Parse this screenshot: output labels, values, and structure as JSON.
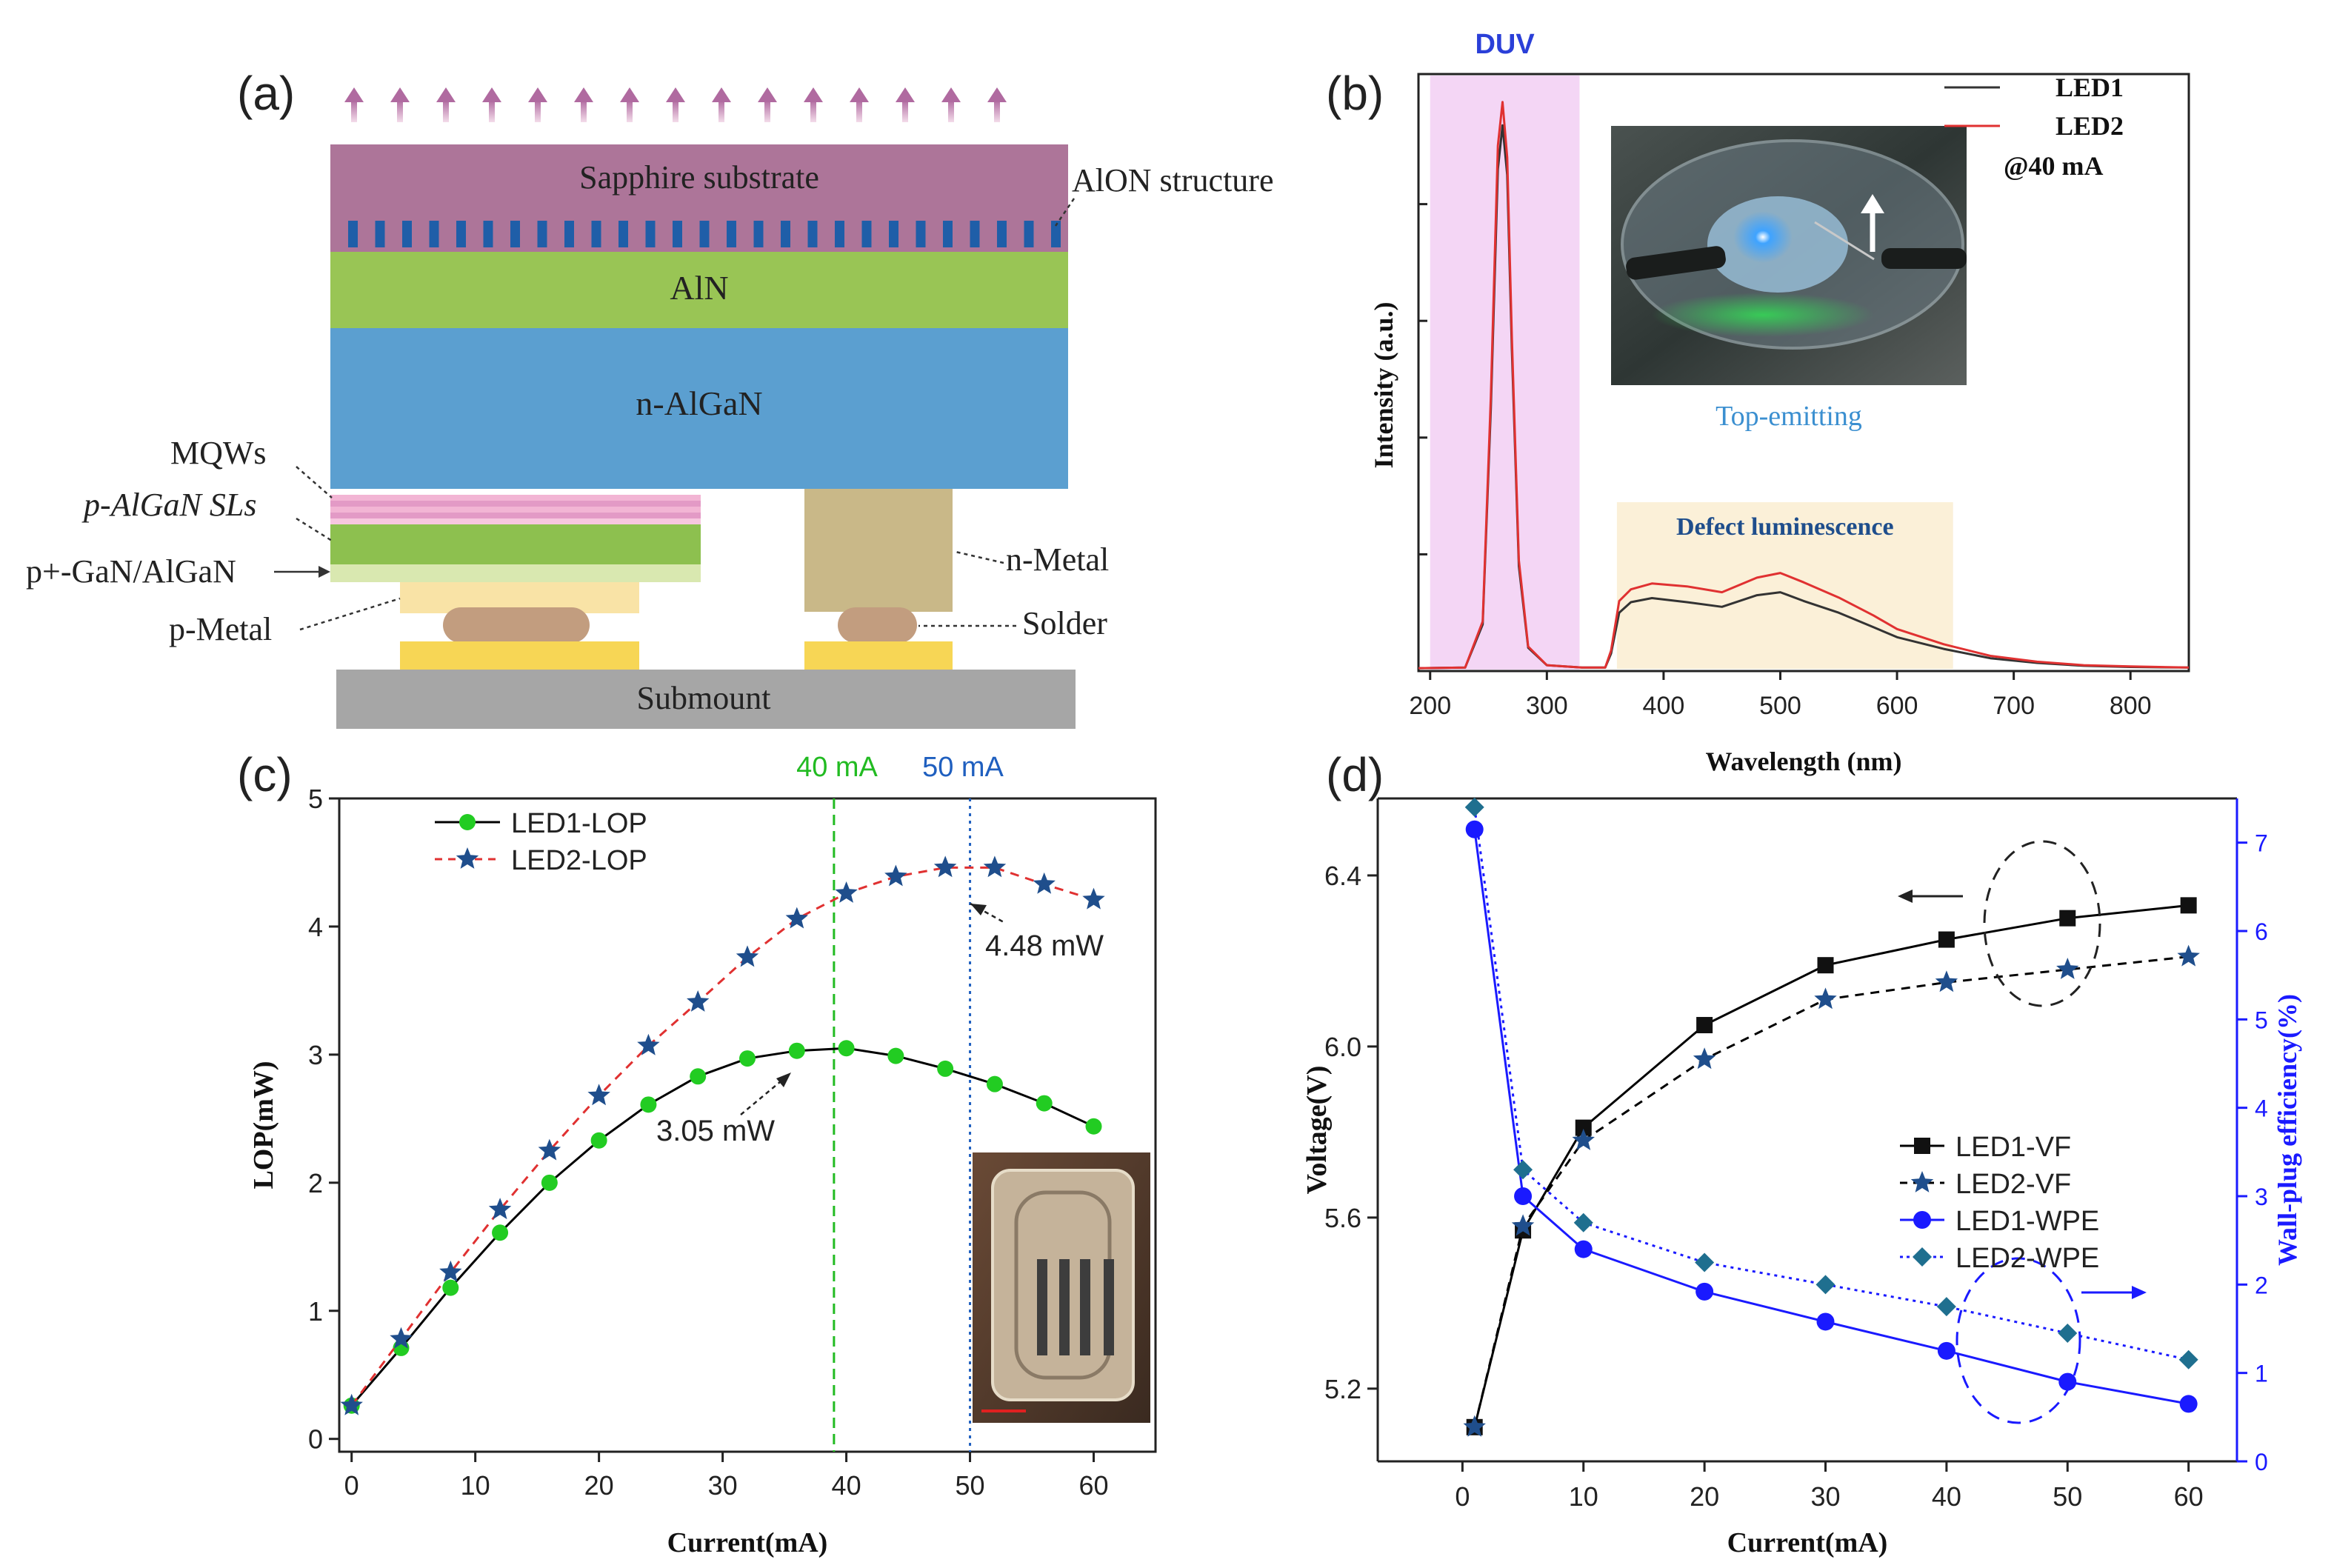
{
  "panel_labels": {
    "a": "(a)",
    "b": "(b)",
    "c": "(c)",
    "d": "(d)"
  },
  "diagram": {
    "layers": {
      "sapphire": "Sapphire substrate",
      "aln": "AlN",
      "nalgan": "n-AlGaN",
      "submount": "Submount"
    },
    "callouts": {
      "alon": "AlON structure",
      "mqws": "MQWs",
      "p_algan_sls": "p-AlGaN SLs",
      "p_gan_algan": "p+-GaN/AlGaN",
      "p_metal": "p-Metal",
      "n_metal": "n-Metal",
      "solder": "Solder"
    },
    "arrow_count": 15,
    "colors": {
      "sapphire": "#ad7599",
      "aln": "#99c555",
      "nalgan": "#5b9fd0",
      "metal": "#f9e3a6",
      "solder": "#c29d7f",
      "pad": "#f7d655",
      "submount": "#a6a6a6",
      "nmetal": "#c9b888"
    }
  },
  "chart_data": [
    {
      "id": "b",
      "type": "line",
      "title": "",
      "xlabel": "Wavelength (nm)",
      "ylabel": "Intensity (a.u.)",
      "xlim": [
        190,
        850
      ],
      "xticks": [
        200,
        300,
        400,
        500,
        600,
        700,
        800
      ],
      "ylim": [
        0,
        1
      ],
      "series": [
        {
          "name": "LED1",
          "color": "#333333",
          "x": [
            190,
            230,
            245,
            252,
            258,
            262,
            266,
            270,
            276,
            284,
            300,
            330,
            350,
            355,
            362,
            372,
            390,
            420,
            450,
            480,
            500,
            520,
            550,
            580,
            600,
            640,
            680,
            720,
            760,
            800,
            850
          ],
          "y": [
            0.005,
            0.006,
            0.08,
            0.45,
            0.86,
            0.935,
            0.85,
            0.55,
            0.18,
            0.04,
            0.01,
            0.006,
            0.006,
            0.03,
            0.1,
            0.118,
            0.125,
            0.118,
            0.11,
            0.13,
            0.135,
            0.12,
            0.1,
            0.075,
            0.058,
            0.038,
            0.022,
            0.014,
            0.009,
            0.007,
            0.006
          ]
        },
        {
          "name": "LED2",
          "color": "#e03131",
          "x": [
            190,
            230,
            245,
            252,
            258,
            262,
            266,
            270,
            276,
            284,
            300,
            330,
            350,
            355,
            362,
            372,
            390,
            420,
            450,
            480,
            500,
            520,
            550,
            580,
            600,
            640,
            680,
            720,
            760,
            800,
            850
          ],
          "y": [
            0.005,
            0.006,
            0.085,
            0.47,
            0.9,
            0.975,
            0.88,
            0.57,
            0.19,
            0.042,
            0.01,
            0.006,
            0.006,
            0.035,
            0.12,
            0.14,
            0.15,
            0.145,
            0.135,
            0.16,
            0.168,
            0.152,
            0.126,
            0.095,
            0.072,
            0.046,
            0.026,
            0.016,
            0.01,
            0.008,
            0.006
          ]
        }
      ],
      "legend": [
        "LED1",
        "LED2"
      ],
      "legend_note": "@40 mA",
      "annotations": {
        "duv": "DUV",
        "defect": "Defect luminescence",
        "inset_caption": "Top-emitting"
      }
    },
    {
      "id": "c",
      "type": "line",
      "title": "",
      "xlabel": "Current(mA)",
      "ylabel": "LOP(mW)",
      "xlim": [
        -1,
        65
      ],
      "ylim": [
        -0.1,
        5
      ],
      "xticks": [
        0,
        10,
        20,
        30,
        40,
        50,
        60
      ],
      "yticks": [
        0,
        1,
        2,
        3,
        4,
        5
      ],
      "series": [
        {
          "name": "LED1-LOP",
          "color": "#000000",
          "marker": "circle",
          "marker_color": "#22cc22",
          "x": [
            0,
            4,
            8,
            12,
            16,
            20,
            24,
            28,
            32,
            36,
            40,
            44,
            48,
            52,
            56,
            60
          ],
          "y": [
            0.26,
            0.71,
            1.18,
            1.61,
            2.0,
            2.33,
            2.61,
            2.83,
            2.97,
            3.03,
            3.05,
            2.99,
            2.89,
            2.77,
            2.62,
            2.44
          ]
        },
        {
          "name": "LED2-LOP",
          "color": "#e03131",
          "dashed": true,
          "marker": "star",
          "marker_color": "#1f4e8c",
          "x": [
            0,
            4,
            8,
            12,
            16,
            20,
            24,
            28,
            32,
            36,
            40,
            44,
            48,
            52,
            56,
            60
          ],
          "y": [
            0.26,
            0.78,
            1.3,
            1.79,
            2.25,
            2.68,
            3.07,
            3.41,
            3.76,
            4.06,
            4.26,
            4.39,
            4.46,
            4.46,
            4.33,
            4.21
          ]
        }
      ],
      "vlines": [
        {
          "x": 39,
          "label": "40 mA",
          "color": "#22bb22"
        },
        {
          "x": 50,
          "label": "50 mA",
          "color": "#1f5fbf"
        }
      ],
      "annotations": {
        "led1_peak": "3.05 mW",
        "led2_peak": "4.48 mW"
      }
    },
    {
      "id": "d",
      "type": "line",
      "title": "",
      "xlabel": "Current(mA)",
      "ylabel": "Voltage(V)",
      "ylabel_right": "Wall-plug efficiency(%)",
      "xlim": [
        -7,
        64
      ],
      "ylim": [
        5.03,
        6.58
      ],
      "ylim_right": [
        0,
        7.5
      ],
      "xticks": [
        0,
        10,
        20,
        30,
        40,
        50,
        60
      ],
      "yticks": [
        5.2,
        5.6,
        6.0,
        6.4
      ],
      "yticks_right": [
        0,
        1,
        2,
        3,
        4,
        5,
        6,
        7
      ],
      "series": [
        {
          "name": "LED1-VF",
          "axis": "left",
          "color": "#000000",
          "marker": "square",
          "x": [
            1,
            5,
            10,
            20,
            30,
            40,
            50,
            60
          ],
          "y": [
            5.11,
            5.57,
            5.81,
            6.05,
            6.19,
            6.25,
            6.3,
            6.33
          ]
        },
        {
          "name": "LED2-VF",
          "axis": "left",
          "color": "#000000",
          "dashed": true,
          "marker": "star",
          "marker_color": "#1f4e8c",
          "x": [
            1,
            5,
            10,
            20,
            30,
            40,
            50,
            60
          ],
          "y": [
            5.11,
            5.58,
            5.78,
            5.97,
            6.11,
            6.15,
            6.18,
            6.21
          ]
        },
        {
          "name": "LED1-WPE",
          "axis": "right",
          "color": "#1a1aff",
          "marker": "circle",
          "x": [
            1,
            5,
            10,
            20,
            30,
            40,
            50,
            60
          ],
          "y": [
            7.15,
            3.0,
            2.4,
            1.92,
            1.58,
            1.25,
            0.9,
            0.65
          ]
        },
        {
          "name": "LED2-WPE",
          "axis": "right",
          "color": "#1a1aff",
          "dotted": true,
          "marker": "diamond",
          "marker_color": "#1f6f8f",
          "x": [
            1,
            5,
            10,
            20,
            30,
            40,
            50,
            60
          ],
          "y": [
            7.4,
            3.3,
            2.7,
            2.25,
            2.0,
            1.75,
            1.45,
            1.15
          ]
        }
      ],
      "legend": [
        "LED1-VF",
        "LED2-VF",
        "LED1-WPE",
        "LED2-WPE"
      ]
    }
  ]
}
